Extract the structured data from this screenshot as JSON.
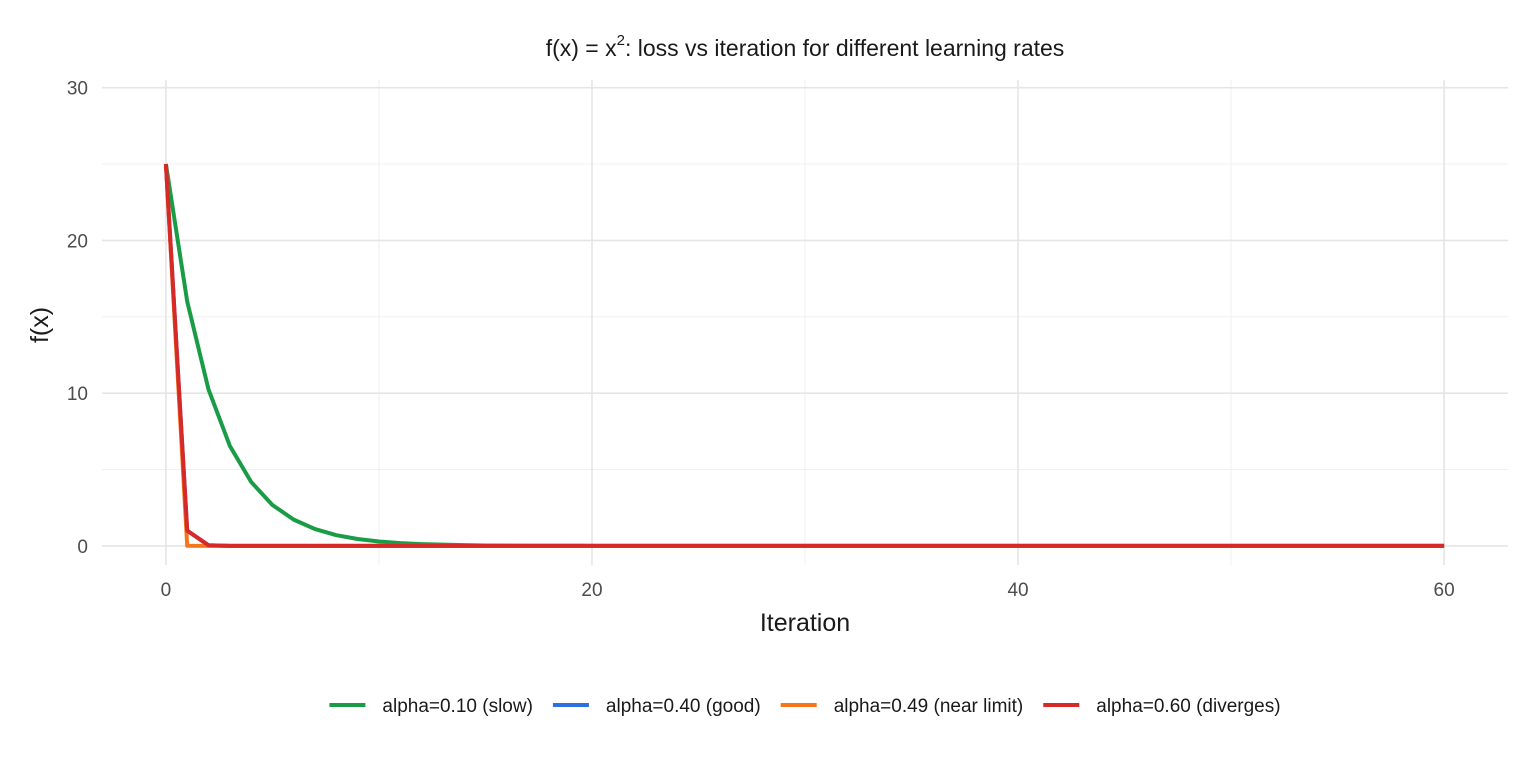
{
  "chart_data": {
    "type": "line",
    "title_main": "f(x) = x",
    "title_sup": "2",
    "title_rest": ": loss vs iteration for different learning rates",
    "xlabel": "Iteration",
    "ylabel": "f(x)",
    "xlim": [
      -3,
      63
    ],
    "ylim": [
      -1.25,
      30.5
    ],
    "x_ticks": [
      0,
      20,
      40,
      60
    ],
    "x_tick_labels": [
      "0",
      "20",
      "40",
      "60"
    ],
    "x_minor": [
      10,
      30,
      50
    ],
    "y_ticks": [
      0,
      10,
      20,
      30
    ],
    "y_tick_labels": [
      "0",
      "10",
      "20",
      "30"
    ],
    "y_minor": [
      5,
      15,
      25
    ],
    "grid": true,
    "legend_position": "bottom",
    "x": [
      0,
      1,
      2,
      3,
      4,
      5,
      6,
      7,
      8,
      9,
      10,
      11,
      12,
      13,
      14,
      15,
      16,
      17,
      18,
      19,
      20,
      21,
      22,
      23,
      24,
      25,
      26,
      27,
      28,
      29,
      30,
      31,
      32,
      33,
      34,
      35,
      36,
      37,
      38,
      39,
      40,
      41,
      42,
      43,
      44,
      45,
      46,
      47,
      48,
      49,
      50,
      51,
      52,
      53,
      54,
      55,
      56,
      57,
      58,
      59,
      60
    ],
    "series": [
      {
        "name": "alpha=0.10 (slow)",
        "color": "#1a9c46",
        "values": [
          25,
          16,
          10.24,
          6.55,
          4.19,
          2.68,
          1.72,
          1.1,
          0.7,
          0.45,
          0.29,
          0.18,
          0.12,
          0.08,
          0.05,
          0.03,
          0.02,
          0.01,
          0.01,
          0.01,
          0,
          0,
          0,
          0,
          0,
          0,
          0,
          0,
          0,
          0,
          0,
          0,
          0,
          0,
          0,
          0,
          0,
          0,
          0,
          0,
          0,
          0,
          0,
          0,
          0,
          0,
          0,
          0,
          0,
          0,
          0,
          0,
          0,
          0,
          0,
          0,
          0,
          0,
          0,
          0,
          0
        ]
      },
      {
        "name": "alpha=0.40 (good)",
        "color": "#2b6fe0",
        "values": [
          25,
          1,
          0.04,
          0,
          0,
          0,
          0,
          0,
          0,
          0,
          0,
          0,
          0,
          0,
          0,
          0,
          0,
          0,
          0,
          0,
          0,
          0,
          0,
          0,
          0,
          0,
          0,
          0,
          0,
          0,
          0,
          0,
          0,
          0,
          0,
          0,
          0,
          0,
          0,
          0,
          0,
          0,
          0,
          0,
          0,
          0,
          0,
          0,
          0,
          0,
          0,
          0,
          0,
          0,
          0,
          0,
          0,
          0,
          0,
          0,
          0
        ]
      },
      {
        "name": "alpha=0.49 (near limit)",
        "color": "#f5761a",
        "values": [
          25,
          0.01,
          0,
          0,
          0,
          0,
          0,
          0,
          0,
          0,
          0,
          0,
          0,
          0,
          0,
          0,
          0,
          0,
          0,
          0,
          0,
          0,
          0,
          0,
          0,
          0,
          0,
          0,
          0,
          0,
          0,
          0,
          0,
          0,
          0,
          0,
          0,
          0,
          0,
          0,
          0,
          0,
          0,
          0,
          0,
          0,
          0,
          0,
          0,
          0,
          0,
          0,
          0,
          0,
          0,
          0,
          0,
          0,
          0,
          0,
          0
        ]
      },
      {
        "name": "alpha=0.60 (diverges)",
        "color": "#d62a28",
        "values": [
          25,
          1,
          0.04,
          0,
          0,
          0,
          0,
          0,
          0,
          0,
          0,
          0,
          0,
          0,
          0,
          0,
          0,
          0,
          0,
          0,
          0,
          0,
          0,
          0,
          0,
          0,
          0,
          0,
          0,
          0,
          0,
          0,
          0,
          0,
          0,
          0,
          0,
          0,
          0,
          0,
          0,
          0,
          0,
          0,
          0,
          0,
          0,
          0,
          0,
          0,
          0,
          0,
          0,
          0,
          0,
          0,
          0,
          0,
          0,
          0,
          0
        ]
      }
    ]
  }
}
